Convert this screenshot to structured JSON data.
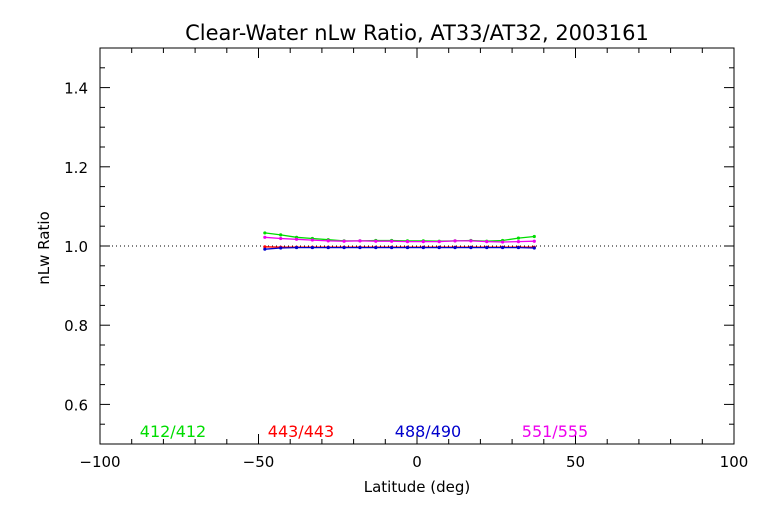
{
  "chart_data": {
    "type": "line",
    "title": "Clear-Water nLw Ratio, AT33/AT32, 2003161",
    "xlabel": "Latitude (deg)",
    "ylabel": "nLw Ratio",
    "xlim": [
      -100,
      100
    ],
    "ylim": [
      0.5,
      1.5
    ],
    "xticks": [
      -100,
      -50,
      0,
      50,
      100
    ],
    "xtick_labels": [
      "−100",
      "−50",
      "0",
      "50",
      "100"
    ],
    "yticks": [
      0.6,
      0.8,
      1.0,
      1.2,
      1.4
    ],
    "ytick_labels": [
      "0.6",
      "0.8",
      "1.0",
      "1.2",
      "1.4"
    ],
    "reference_line": 1.0,
    "grid": false,
    "legend_position": "bottom inside plot",
    "x": [
      -48,
      -43,
      -38,
      -33,
      -28,
      -23,
      -18,
      -13,
      -8,
      -3,
      2,
      7,
      12,
      17,
      22,
      27,
      32,
      37
    ],
    "series": [
      {
        "name": "412/412",
        "color": "#00dd00",
        "values": [
          1.033,
          1.028,
          1.022,
          1.019,
          1.016,
          1.013,
          1.013,
          1.014,
          1.014,
          1.013,
          1.013,
          1.012,
          1.013,
          1.014,
          1.012,
          1.014,
          1.02,
          1.024
        ]
      },
      {
        "name": "443/443",
        "color": "#ff0000",
        "values": [
          0.998,
          0.997,
          0.997,
          0.997,
          0.997,
          0.997,
          0.997,
          0.997,
          0.997,
          0.997,
          0.997,
          0.997,
          0.997,
          0.997,
          0.997,
          0.997,
          0.997,
          0.997
        ]
      },
      {
        "name": "488/490",
        "color": "#0000cc",
        "values": [
          0.992,
          0.995,
          0.996,
          0.996,
          0.996,
          0.996,
          0.996,
          0.996,
          0.996,
          0.996,
          0.996,
          0.996,
          0.996,
          0.996,
          0.996,
          0.996,
          0.996,
          0.995
        ]
      },
      {
        "name": "551/555",
        "color": "#ee00ee",
        "values": [
          1.022,
          1.019,
          1.017,
          1.015,
          1.013,
          1.012,
          1.013,
          1.012,
          1.012,
          1.011,
          1.011,
          1.011,
          1.013,
          1.013,
          1.011,
          1.01,
          1.011,
          1.012
        ]
      }
    ]
  }
}
